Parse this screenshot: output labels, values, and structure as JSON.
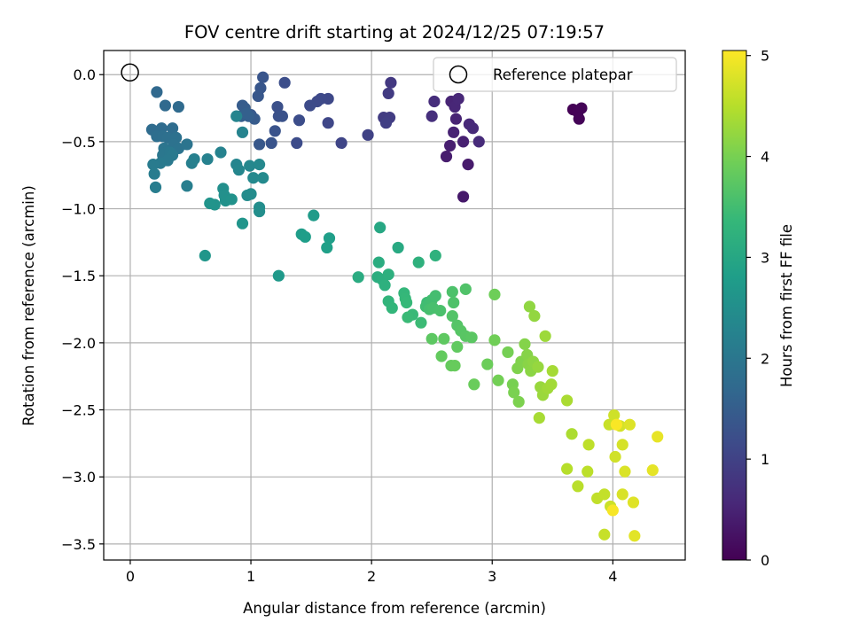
{
  "chart_data": {
    "type": "scatter",
    "title": "FOV centre drift starting at 2024/12/25 07:19:57",
    "xlabel": "Angular distance from reference (arcmin)",
    "ylabel": "Rotation from reference (arcmin)",
    "xlim": [
      -0.22,
      4.6
    ],
    "ylim": [
      -3.62,
      0.18
    ],
    "xticks": [
      0,
      1,
      2,
      3,
      4
    ],
    "xtick_labels": [
      "0",
      "1",
      "2",
      "3",
      "4"
    ],
    "yticks": [
      0.0,
      -0.5,
      -1.0,
      -1.5,
      -2.0,
      -2.5,
      -3.0,
      -3.5
    ],
    "ytick_labels": [
      "0.0",
      "−0.5",
      "−1.0",
      "−1.5",
      "−2.0",
      "−2.5",
      "−3.0",
      "−3.5"
    ],
    "grid": true,
    "legend": {
      "position": "top-right",
      "entries": [
        "Reference platepar"
      ]
    },
    "reference_point": {
      "x": 0,
      "y": 0,
      "marker": "open-circle",
      "label": "Reference platepar"
    },
    "colorbar": {
      "label": "Hours from first FF file",
      "range": [
        0,
        5.05
      ],
      "ticks": [
        0,
        1,
        2,
        3,
        4,
        5
      ],
      "tick_labels": [
        "0",
        "1",
        "2",
        "3",
        "4",
        "5"
      ],
      "colormap": "viridis",
      "colormap_stops": [
        "#440154",
        "#482878",
        "#3e4989",
        "#31688e",
        "#26828e",
        "#1f9e89",
        "#35b779",
        "#6ece58",
        "#b5de2b",
        "#fde725"
      ]
    },
    "points": [
      {
        "x": 3.67,
        "y": -0.26,
        "c": 0.02
      },
      {
        "x": 3.71,
        "y": -0.28,
        "c": 0.03
      },
      {
        "x": 3.74,
        "y": -0.25,
        "c": 0.04
      },
      {
        "x": 3.72,
        "y": -0.33,
        "c": 0.05
      },
      {
        "x": 2.76,
        "y": -0.91,
        "c": 0.35
      },
      {
        "x": 2.8,
        "y": -0.67,
        "c": 0.38
      },
      {
        "x": 2.62,
        "y": -0.61,
        "c": 0.4
      },
      {
        "x": 2.65,
        "y": -0.53,
        "c": 0.42
      },
      {
        "x": 2.76,
        "y": -0.5,
        "c": 0.45
      },
      {
        "x": 2.68,
        "y": -0.43,
        "c": 0.48
      },
      {
        "x": 2.7,
        "y": -0.33,
        "c": 0.5
      },
      {
        "x": 2.66,
        "y": -0.2,
        "c": 0.52
      },
      {
        "x": 2.69,
        "y": -0.24,
        "c": 0.54
      },
      {
        "x": 2.72,
        "y": -0.18,
        "c": 0.56
      },
      {
        "x": 2.81,
        "y": -0.37,
        "c": 0.58
      },
      {
        "x": 2.84,
        "y": -0.4,
        "c": 0.6
      },
      {
        "x": 2.89,
        "y": -0.5,
        "c": 0.62
      },
      {
        "x": 2.52,
        "y": -0.2,
        "c": 0.65
      },
      {
        "x": 2.5,
        "y": -0.31,
        "c": 0.68
      },
      {
        "x": 2.16,
        "y": -0.06,
        "c": 0.85
      },
      {
        "x": 2.14,
        "y": -0.14,
        "c": 0.88
      },
      {
        "x": 2.1,
        "y": -0.32,
        "c": 0.9
      },
      {
        "x": 2.15,
        "y": -0.32,
        "c": 0.92
      },
      {
        "x": 2.12,
        "y": -0.36,
        "c": 0.95
      },
      {
        "x": 1.97,
        "y": -0.45,
        "c": 1.0
      },
      {
        "x": 1.75,
        "y": -0.51,
        "c": 1.05
      },
      {
        "x": 1.64,
        "y": -0.36,
        "c": 1.08
      },
      {
        "x": 1.64,
        "y": -0.18,
        "c": 1.1
      },
      {
        "x": 1.58,
        "y": -0.18,
        "c": 1.12
      },
      {
        "x": 1.55,
        "y": -0.2,
        "c": 1.14
      },
      {
        "x": 1.49,
        "y": -0.23,
        "c": 1.16
      },
      {
        "x": 1.38,
        "y": -0.51,
        "c": 1.18
      },
      {
        "x": 1.4,
        "y": -0.34,
        "c": 1.2
      },
      {
        "x": 1.28,
        "y": -0.06,
        "c": 1.22
      },
      {
        "x": 1.22,
        "y": -0.24,
        "c": 1.24
      },
      {
        "x": 1.23,
        "y": -0.31,
        "c": 1.26
      },
      {
        "x": 1.26,
        "y": -0.31,
        "c": 1.28
      },
      {
        "x": 1.2,
        "y": -0.42,
        "c": 1.3
      },
      {
        "x": 1.17,
        "y": -0.51,
        "c": 1.32
      },
      {
        "x": 1.1,
        "y": -0.02,
        "c": 1.34
      },
      {
        "x": 1.08,
        "y": -0.1,
        "c": 1.36
      },
      {
        "x": 1.06,
        "y": -0.16,
        "c": 1.38
      },
      {
        "x": 1.07,
        "y": -0.52,
        "c": 1.4
      },
      {
        "x": 1.0,
        "y": -0.3,
        "c": 1.42
      },
      {
        "x": 1.03,
        "y": -0.33,
        "c": 1.44
      },
      {
        "x": 0.93,
        "y": -0.23,
        "c": 1.46
      },
      {
        "x": 0.95,
        "y": -0.25,
        "c": 1.48
      },
      {
        "x": 0.92,
        "y": -0.31,
        "c": 1.5
      },
      {
        "x": 0.98,
        "y": -0.31,
        "c": 1.52
      },
      {
        "x": 0.96,
        "y": -0.29,
        "c": 1.54
      },
      {
        "x": 0.22,
        "y": -0.13,
        "c": 1.7
      },
      {
        "x": 0.29,
        "y": -0.23,
        "c": 1.72
      },
      {
        "x": 0.4,
        "y": -0.24,
        "c": 1.74
      },
      {
        "x": 0.18,
        "y": -0.41,
        "c": 1.76
      },
      {
        "x": 0.26,
        "y": -0.4,
        "c": 1.78
      },
      {
        "x": 0.35,
        "y": -0.4,
        "c": 1.8
      },
      {
        "x": 0.22,
        "y": -0.46,
        "c": 1.82
      },
      {
        "x": 0.27,
        "y": -0.46,
        "c": 1.84
      },
      {
        "x": 0.31,
        "y": -0.47,
        "c": 1.86
      },
      {
        "x": 0.38,
        "y": -0.47,
        "c": 1.88
      },
      {
        "x": 0.36,
        "y": -0.52,
        "c": 1.9
      },
      {
        "x": 0.4,
        "y": -0.55,
        "c": 1.92
      },
      {
        "x": 0.47,
        "y": -0.52,
        "c": 1.94
      },
      {
        "x": 0.28,
        "y": -0.55,
        "c": 1.96
      },
      {
        "x": 0.3,
        "y": -0.58,
        "c": 1.98
      },
      {
        "x": 0.27,
        "y": -0.6,
        "c": 2.0
      },
      {
        "x": 0.33,
        "y": -0.58,
        "c": 2.02
      },
      {
        "x": 0.35,
        "y": -0.6,
        "c": 2.04
      },
      {
        "x": 0.31,
        "y": -0.64,
        "c": 2.06
      },
      {
        "x": 0.25,
        "y": -0.66,
        "c": 2.08
      },
      {
        "x": 0.19,
        "y": -0.67,
        "c": 2.1
      },
      {
        "x": 0.2,
        "y": -0.74,
        "c": 2.12
      },
      {
        "x": 0.21,
        "y": -0.84,
        "c": 2.14
      },
      {
        "x": 0.47,
        "y": -0.83,
        "c": 2.16
      },
      {
        "x": 0.51,
        "y": -0.66,
        "c": 2.18
      },
      {
        "x": 0.53,
        "y": -0.63,
        "c": 2.2
      },
      {
        "x": 0.64,
        "y": -0.63,
        "c": 2.22
      },
      {
        "x": 0.75,
        "y": -0.58,
        "c": 2.24
      },
      {
        "x": 0.93,
        "y": -0.43,
        "c": 2.26
      },
      {
        "x": 0.88,
        "y": -0.31,
        "c": 2.28
      },
      {
        "x": 0.88,
        "y": -0.67,
        "c": 2.3
      },
      {
        "x": 0.9,
        "y": -0.71,
        "c": 2.32
      },
      {
        "x": 0.99,
        "y": -0.68,
        "c": 2.34
      },
      {
        "x": 1.07,
        "y": -0.67,
        "c": 2.36
      },
      {
        "x": 1.02,
        "y": -0.77,
        "c": 2.38
      },
      {
        "x": 1.1,
        "y": -0.77,
        "c": 2.4
      },
      {
        "x": 0.97,
        "y": -0.9,
        "c": 2.42
      },
      {
        "x": 1.0,
        "y": -0.89,
        "c": 2.44
      },
      {
        "x": 1.07,
        "y": -0.99,
        "c": 2.46
      },
      {
        "x": 1.07,
        "y": -1.02,
        "c": 2.48
      },
      {
        "x": 0.77,
        "y": -0.85,
        "c": 2.5
      },
      {
        "x": 0.78,
        "y": -0.9,
        "c": 2.52
      },
      {
        "x": 0.79,
        "y": -0.94,
        "c": 2.54
      },
      {
        "x": 0.84,
        "y": -0.93,
        "c": 2.56
      },
      {
        "x": 0.7,
        "y": -0.97,
        "c": 2.58
      },
      {
        "x": 0.66,
        "y": -0.96,
        "c": 2.6
      },
      {
        "x": 0.93,
        "y": -1.11,
        "c": 2.62
      },
      {
        "x": 0.62,
        "y": -1.35,
        "c": 2.64
      },
      {
        "x": 1.23,
        "y": -1.5,
        "c": 2.7
      },
      {
        "x": 1.52,
        "y": -1.05,
        "c": 2.75
      },
      {
        "x": 1.42,
        "y": -1.19,
        "c": 2.78
      },
      {
        "x": 1.45,
        "y": -1.21,
        "c": 2.8
      },
      {
        "x": 1.65,
        "y": -1.22,
        "c": 2.82
      },
      {
        "x": 1.63,
        "y": -1.29,
        "c": 2.84
      },
      {
        "x": 2.07,
        "y": -1.14,
        "c": 3.0
      },
      {
        "x": 2.22,
        "y": -1.29,
        "c": 3.05
      },
      {
        "x": 1.89,
        "y": -1.51,
        "c": 3.1
      },
      {
        "x": 2.06,
        "y": -1.4,
        "c": 3.12
      },
      {
        "x": 2.05,
        "y": -1.51,
        "c": 3.14
      },
      {
        "x": 2.09,
        "y": -1.53,
        "c": 3.16
      },
      {
        "x": 2.14,
        "y": -1.49,
        "c": 3.18
      },
      {
        "x": 2.11,
        "y": -1.57,
        "c": 3.2
      },
      {
        "x": 2.39,
        "y": -1.4,
        "c": 3.22
      },
      {
        "x": 2.53,
        "y": -1.35,
        "c": 3.24
      },
      {
        "x": 2.14,
        "y": -1.69,
        "c": 3.3
      },
      {
        "x": 2.17,
        "y": -1.74,
        "c": 3.32
      },
      {
        "x": 2.27,
        "y": -1.63,
        "c": 3.34
      },
      {
        "x": 2.28,
        "y": -1.67,
        "c": 3.36
      },
      {
        "x": 2.29,
        "y": -1.7,
        "c": 3.38
      },
      {
        "x": 2.34,
        "y": -1.79,
        "c": 3.4
      },
      {
        "x": 2.3,
        "y": -1.81,
        "c": 3.42
      },
      {
        "x": 2.41,
        "y": -1.85,
        "c": 3.44
      },
      {
        "x": 2.46,
        "y": -1.7,
        "c": 3.46
      },
      {
        "x": 2.45,
        "y": -1.73,
        "c": 3.48
      },
      {
        "x": 2.5,
        "y": -1.68,
        "c": 3.5
      },
      {
        "x": 2.53,
        "y": -1.65,
        "c": 3.52
      },
      {
        "x": 2.48,
        "y": -1.75,
        "c": 3.54
      },
      {
        "x": 2.51,
        "y": -1.74,
        "c": 3.56
      },
      {
        "x": 2.57,
        "y": -1.76,
        "c": 3.58
      },
      {
        "x": 2.67,
        "y": -1.62,
        "c": 3.6
      },
      {
        "x": 2.68,
        "y": -1.7,
        "c": 3.62
      },
      {
        "x": 2.78,
        "y": -1.6,
        "c": 3.64
      },
      {
        "x": 2.67,
        "y": -1.8,
        "c": 3.66
      },
      {
        "x": 2.71,
        "y": -1.87,
        "c": 3.68
      },
      {
        "x": 2.74,
        "y": -1.91,
        "c": 3.7
      },
      {
        "x": 2.78,
        "y": -1.95,
        "c": 3.72
      },
      {
        "x": 2.83,
        "y": -1.96,
        "c": 3.74
      },
      {
        "x": 2.5,
        "y": -1.97,
        "c": 3.76
      },
      {
        "x": 2.6,
        "y": -1.97,
        "c": 3.78
      },
      {
        "x": 2.71,
        "y": -2.03,
        "c": 3.8
      },
      {
        "x": 2.58,
        "y": -2.1,
        "c": 3.82
      },
      {
        "x": 2.66,
        "y": -2.17,
        "c": 3.84
      },
      {
        "x": 2.69,
        "y": -2.17,
        "c": 3.86
      },
      {
        "x": 2.85,
        "y": -2.31,
        "c": 3.88
      },
      {
        "x": 2.96,
        "y": -2.16,
        "c": 3.9
      },
      {
        "x": 3.02,
        "y": -1.64,
        "c": 3.92
      },
      {
        "x": 3.02,
        "y": -1.98,
        "c": 3.94
      },
      {
        "x": 3.05,
        "y": -2.28,
        "c": 3.96
      },
      {
        "x": 3.13,
        "y": -2.07,
        "c": 3.98
      },
      {
        "x": 3.17,
        "y": -2.31,
        "c": 4.0
      },
      {
        "x": 3.18,
        "y": -2.37,
        "c": 4.02
      },
      {
        "x": 3.22,
        "y": -2.44,
        "c": 4.04
      },
      {
        "x": 3.21,
        "y": -2.19,
        "c": 4.06
      },
      {
        "x": 3.24,
        "y": -2.14,
        "c": 4.08
      },
      {
        "x": 3.27,
        "y": -2.01,
        "c": 4.1
      },
      {
        "x": 3.29,
        "y": -2.09,
        "c": 4.12
      },
      {
        "x": 3.3,
        "y": -2.16,
        "c": 4.14
      },
      {
        "x": 3.32,
        "y": -2.21,
        "c": 4.16
      },
      {
        "x": 3.34,
        "y": -2.14,
        "c": 4.18
      },
      {
        "x": 3.31,
        "y": -1.73,
        "c": 4.2
      },
      {
        "x": 3.35,
        "y": -1.8,
        "c": 4.22
      },
      {
        "x": 3.38,
        "y": -2.18,
        "c": 4.24
      },
      {
        "x": 3.4,
        "y": -2.33,
        "c": 4.26
      },
      {
        "x": 3.42,
        "y": -2.39,
        "c": 4.28
      },
      {
        "x": 3.44,
        "y": -1.95,
        "c": 4.3
      },
      {
        "x": 3.46,
        "y": -2.34,
        "c": 4.32
      },
      {
        "x": 3.49,
        "y": -2.31,
        "c": 4.34
      },
      {
        "x": 3.5,
        "y": -2.21,
        "c": 4.36
      },
      {
        "x": 3.39,
        "y": -2.56,
        "c": 4.38
      },
      {
        "x": 3.62,
        "y": -2.43,
        "c": 4.4
      },
      {
        "x": 3.66,
        "y": -2.68,
        "c": 4.42
      },
      {
        "x": 3.62,
        "y": -2.94,
        "c": 4.5
      },
      {
        "x": 3.71,
        "y": -3.07,
        "c": 4.52
      },
      {
        "x": 3.79,
        "y": -2.96,
        "c": 4.54
      },
      {
        "x": 3.8,
        "y": -2.76,
        "c": 4.56
      },
      {
        "x": 3.87,
        "y": -3.16,
        "c": 4.58
      },
      {
        "x": 3.93,
        "y": -3.13,
        "c": 4.6
      },
      {
        "x": 3.93,
        "y": -3.43,
        "c": 4.62
      },
      {
        "x": 3.97,
        "y": -2.61,
        "c": 4.64
      },
      {
        "x": 3.98,
        "y": -3.22,
        "c": 4.66
      },
      {
        "x": 4.01,
        "y": -2.54,
        "c": 4.68
      },
      {
        "x": 4.02,
        "y": -2.85,
        "c": 4.7
      },
      {
        "x": 4.06,
        "y": -2.62,
        "c": 4.72
      },
      {
        "x": 4.08,
        "y": -2.76,
        "c": 4.74
      },
      {
        "x": 4.08,
        "y": -3.13,
        "c": 4.76
      },
      {
        "x": 4.1,
        "y": -2.96,
        "c": 4.78
      },
      {
        "x": 4.14,
        "y": -2.61,
        "c": 4.8
      },
      {
        "x": 4.17,
        "y": -3.19,
        "c": 4.82
      },
      {
        "x": 4.18,
        "y": -3.44,
        "c": 4.84
      },
      {
        "x": 4.33,
        "y": -2.95,
        "c": 4.86
      },
      {
        "x": 4.37,
        "y": -2.7,
        "c": 4.88
      },
      {
        "x": 4.0,
        "y": -3.25,
        "c": 5.0
      },
      {
        "x": 4.03,
        "y": -2.61,
        "c": 5.02
      }
    ]
  }
}
